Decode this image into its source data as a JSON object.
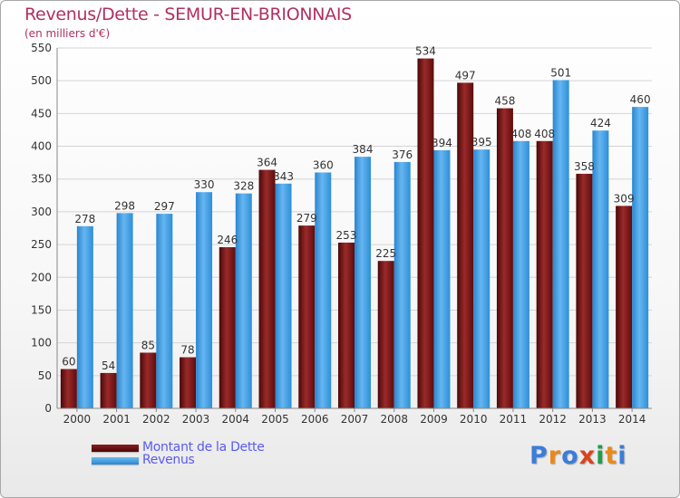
{
  "header": {
    "title": "Revenus/Dette - SEMUR-EN-BRIONNAIS",
    "subtitle": "(en milliers d'€)"
  },
  "colors": {
    "title": "#b03060",
    "dette": "#7a1414",
    "revenus": "#2e8fd8",
    "legend_text": "#5a5af0",
    "grid": "#d0d0d0"
  },
  "legend": {
    "items": [
      {
        "label": "Montant de la Dette",
        "color": "#6b1010"
      },
      {
        "label": "Revenus",
        "color": "#3a9be0"
      }
    ]
  },
  "logo": {
    "letters": [
      "P",
      "r",
      "o",
      "x",
      "i",
      "t",
      "i"
    ],
    "colors": [
      "#3b7dd8",
      "#e88a1a",
      "#3b7dd8",
      "#d8441e",
      "#1f9e4a",
      "#e88a1a",
      "#3b7dd8"
    ]
  },
  "chart_data": {
    "type": "bar",
    "categories": [
      "2000",
      "2001",
      "2002",
      "2003",
      "2004",
      "2005",
      "2006",
      "2007",
      "2008",
      "2009",
      "2010",
      "2011",
      "2012",
      "2013",
      "2014"
    ],
    "series": [
      {
        "name": "Montant de la Dette",
        "values": [
          60,
          54,
          85,
          78,
          246,
          364,
          279,
          253,
          225,
          534,
          497,
          458,
          408,
          358,
          309
        ]
      },
      {
        "name": "Revenus",
        "values": [
          278,
          298,
          297,
          330,
          328,
          343,
          360,
          384,
          376,
          394,
          395,
          408,
          501,
          424,
          460
        ]
      }
    ],
    "ylim": [
      0,
      550
    ],
    "yticks": [
      0,
      50,
      100,
      150,
      200,
      250,
      300,
      350,
      400,
      450,
      500,
      550
    ],
    "grid": true,
    "legend_position": "bottom-left"
  }
}
